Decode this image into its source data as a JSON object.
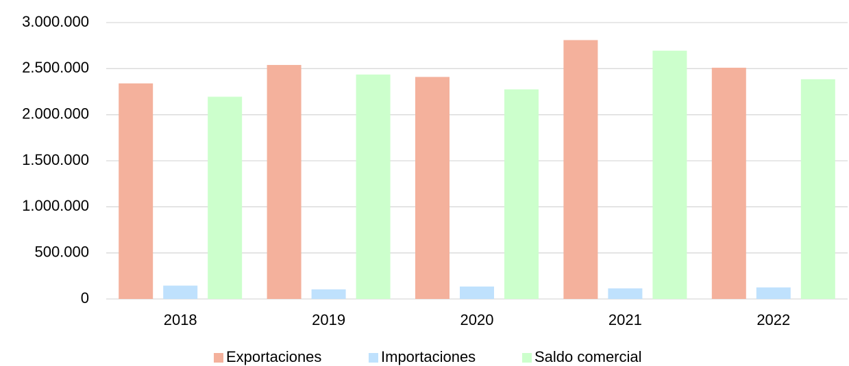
{
  "chart_data": {
    "type": "bar",
    "categories": [
      "2018",
      "2019",
      "2020",
      "2021",
      "2022"
    ],
    "series": [
      {
        "name": "Exportaciones",
        "color": "#f4b19c",
        "values": [
          2340000,
          2540000,
          2410000,
          2810000,
          2510000
        ]
      },
      {
        "name": "Importaciones",
        "color": "#bfe1fd",
        "values": [
          145000,
          104000,
          135000,
          115000,
          125000
        ]
      },
      {
        "name": "Saldo comercial",
        "color": "#ccffcc",
        "values": [
          2195000,
          2436000,
          2275000,
          2695000,
          2385000
        ]
      }
    ],
    "ylim": [
      0,
      3000000
    ],
    "yticks": [
      0,
      {
        "value": 500000,
        "label": "500.000"
      },
      {
        "value": 1000000,
        "label": "1.000.000"
      },
      {
        "value": 1500000,
        "label": "1.500.000"
      },
      {
        "value": 2000000,
        "label": "2.000.000"
      },
      {
        "value": 2500000,
        "label": "2.500.000"
      },
      {
        "value": 3000000,
        "label": "3.000.000"
      }
    ],
    "grid": true,
    "legend": "bottom"
  }
}
